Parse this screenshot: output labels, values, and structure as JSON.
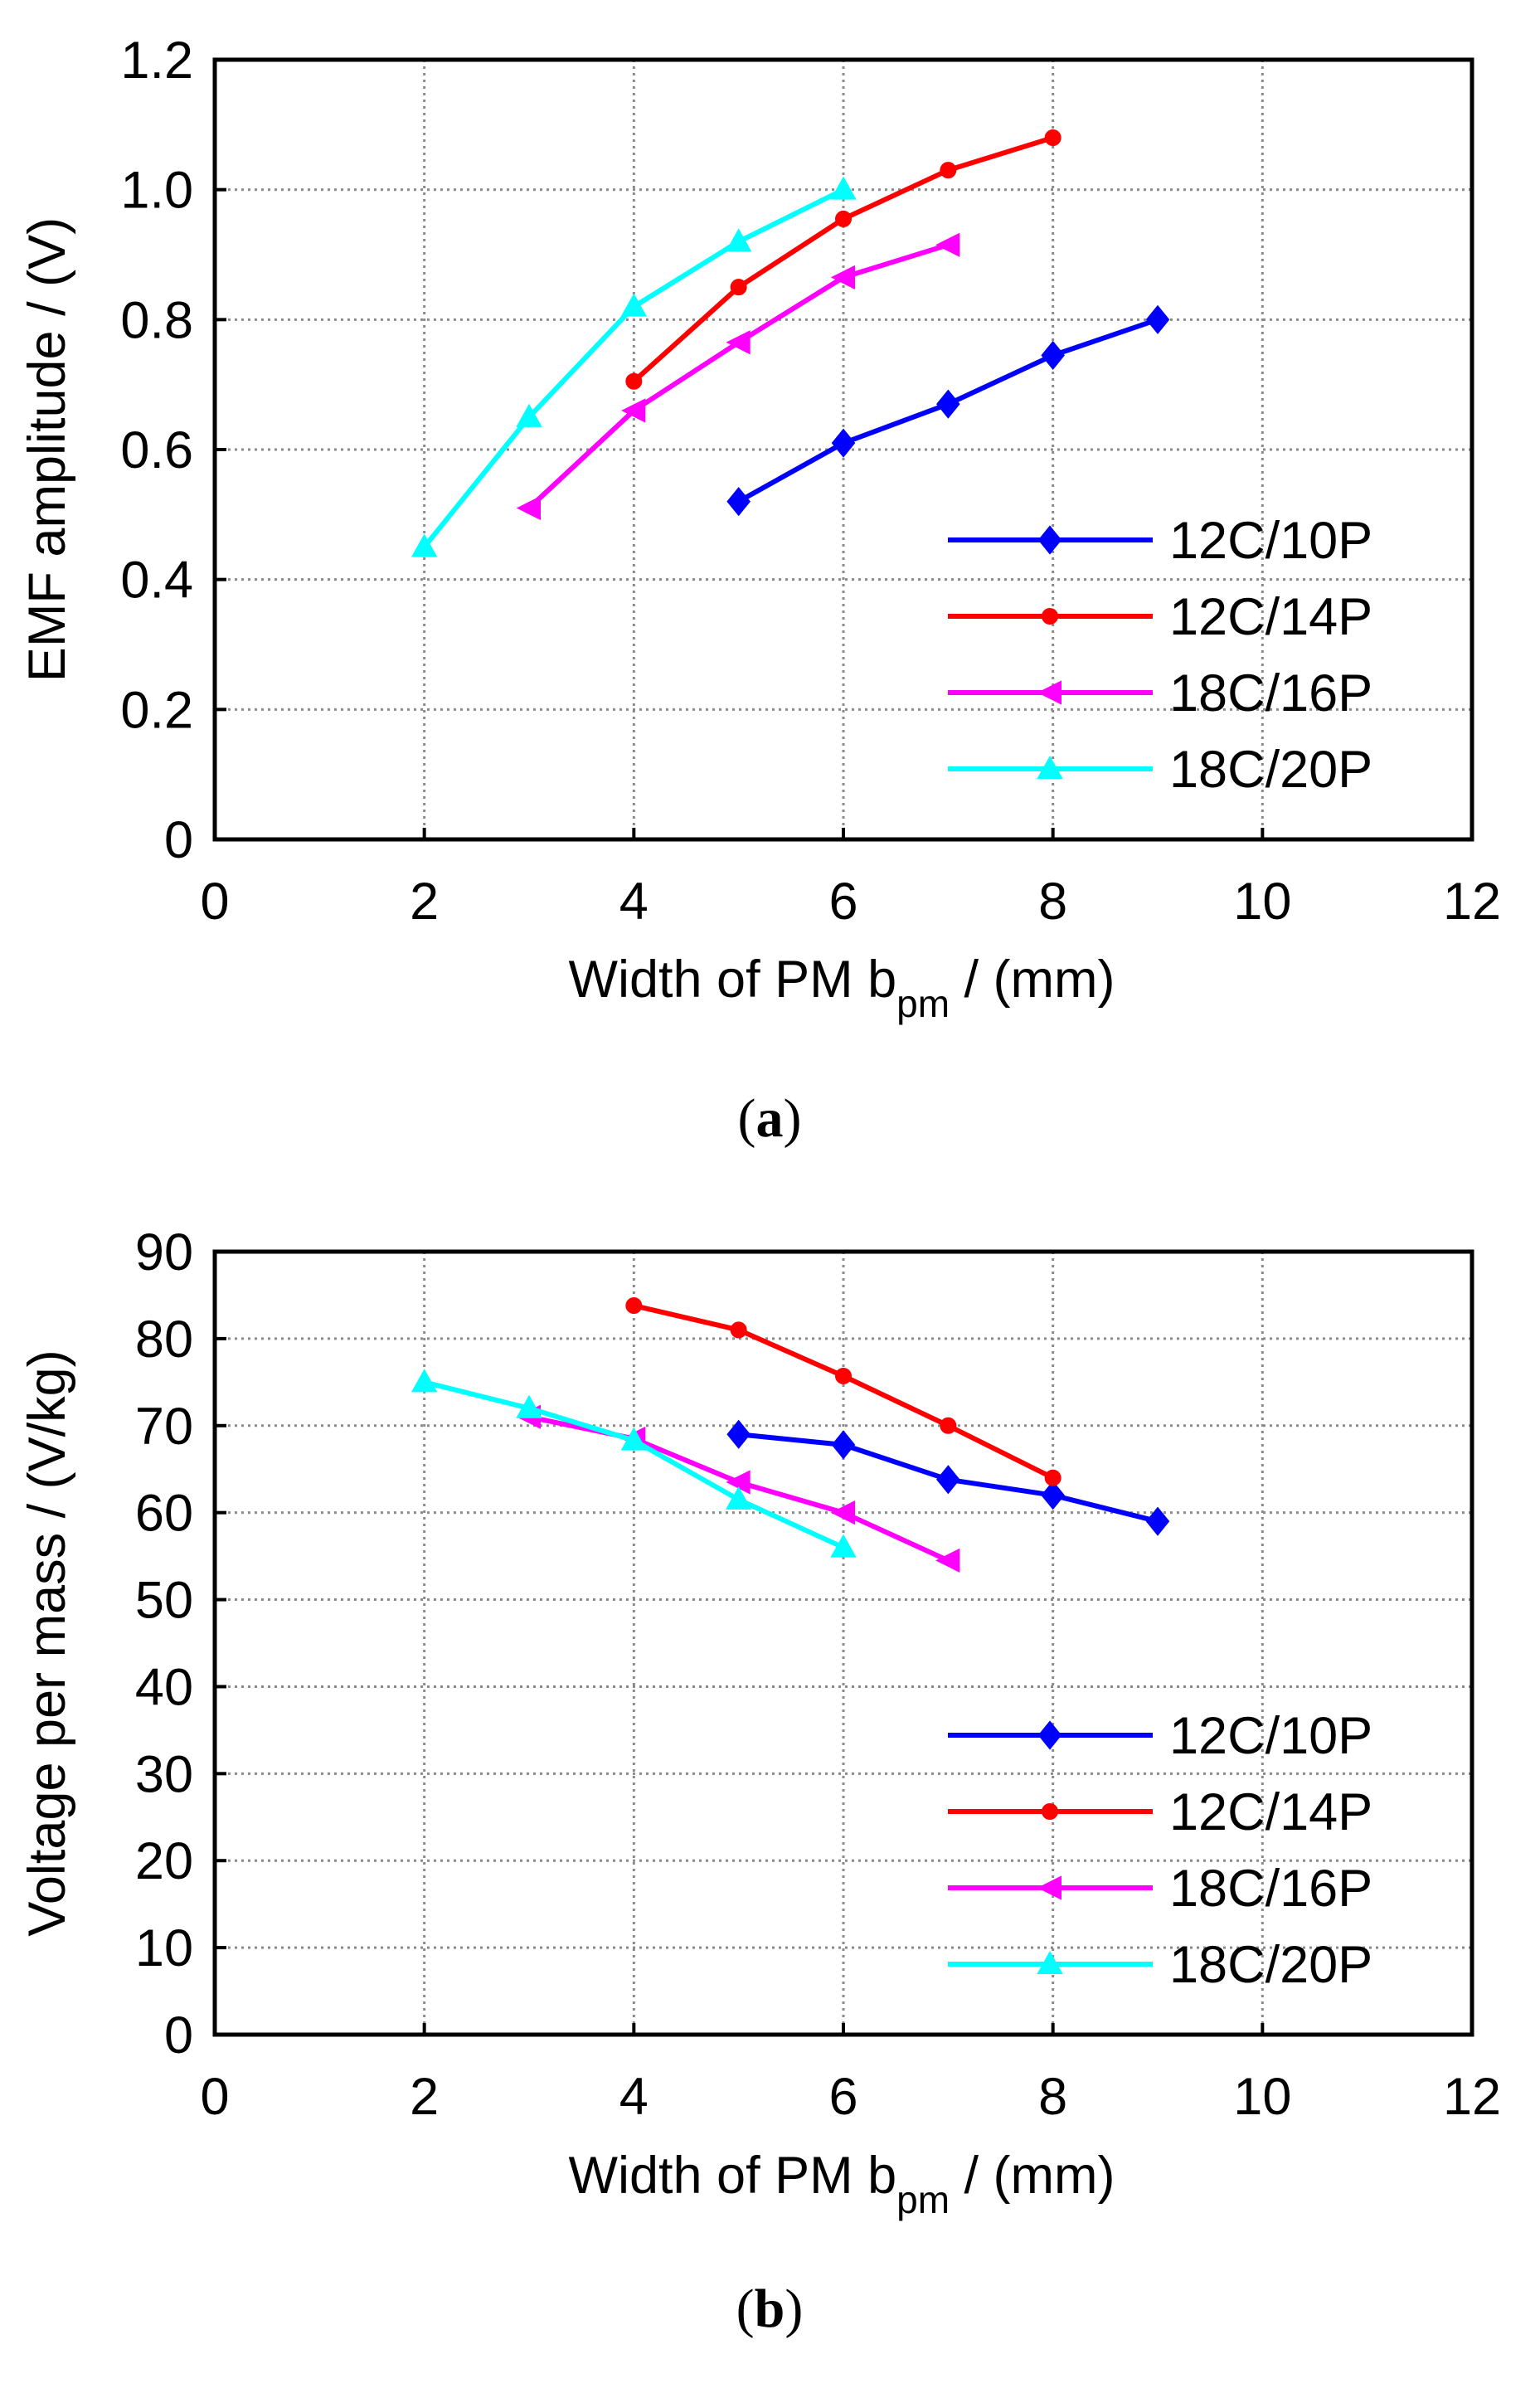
{
  "chart_data": [
    {
      "type": "line",
      "panel": "a",
      "caption_label": "a",
      "ylabel": "EMF amplitude / (V)",
      "xlabel_main": "Width of PM b",
      "xlabel_sub": "pm",
      "xlabel_tail": " / (mm)",
      "xlim": [
        0,
        12
      ],
      "ylim": [
        0,
        1.2
      ],
      "xticks": [
        "0",
        "2",
        "4",
        "6",
        "8",
        "10",
        "12"
      ],
      "yticks": [
        "0",
        "0.2",
        "0.4",
        "0.6",
        "0.8",
        "1.0",
        "1.2"
      ],
      "grid": true,
      "legend_position": "bottom-right",
      "series": [
        {
          "name": "12C/10P",
          "color": "#0000ff",
          "marker": "diamond",
          "x": [
            5,
            6,
            7,
            8,
            9
          ],
          "y": [
            0.52,
            0.61,
            0.67,
            0.745,
            0.8
          ]
        },
        {
          "name": "12C/14P",
          "color": "#ff0000",
          "marker": "circle",
          "x": [
            4,
            5,
            6,
            7,
            8
          ],
          "y": [
            0.705,
            0.85,
            0.955,
            1.03,
            1.08
          ]
        },
        {
          "name": "18C/16P",
          "color": "#ff00ff",
          "marker": "triangle-left",
          "x": [
            3,
            4,
            5,
            6,
            7
          ],
          "y": [
            0.51,
            0.66,
            0.765,
            0.865,
            0.915
          ]
        },
        {
          "name": "18C/20P",
          "color": "#00ffff",
          "marker": "triangle-up",
          "x": [
            2,
            3,
            4,
            5,
            6
          ],
          "y": [
            0.45,
            0.65,
            0.82,
            0.92,
            1.0
          ]
        }
      ]
    },
    {
      "type": "line",
      "panel": "b",
      "caption_label": "b",
      "ylabel": "Voltage per mass / (V/kg)",
      "xlabel_main": "Width of PM b",
      "xlabel_sub": "pm",
      "xlabel_tail": " / (mm)",
      "xlim": [
        0,
        12
      ],
      "ylim": [
        0,
        90
      ],
      "xticks": [
        "0",
        "2",
        "4",
        "6",
        "8",
        "10",
        "12"
      ],
      "yticks": [
        "0",
        "10",
        "20",
        "30",
        "40",
        "50",
        "60",
        "70",
        "80",
        "90"
      ],
      "grid": true,
      "legend_position": "bottom-right",
      "series": [
        {
          "name": "12C/10P",
          "color": "#0000ff",
          "marker": "diamond",
          "x": [
            5,
            6,
            7,
            8,
            9
          ],
          "y": [
            69,
            67.8,
            63.8,
            62,
            59
          ]
        },
        {
          "name": "12C/14P",
          "color": "#ff0000",
          "marker": "circle",
          "x": [
            4,
            5,
            6,
            7,
            8
          ],
          "y": [
            83.8,
            81,
            75.7,
            70,
            64
          ]
        },
        {
          "name": "18C/16P",
          "color": "#ff00ff",
          "marker": "triangle-left",
          "x": [
            3,
            4,
            5,
            6,
            7
          ],
          "y": [
            71,
            68.5,
            63.5,
            60,
            54.5
          ]
        },
        {
          "name": "18C/20P",
          "color": "#00ffff",
          "marker": "triangle-up",
          "x": [
            2,
            3,
            4,
            5,
            6
          ],
          "y": [
            75,
            72,
            68.3,
            61.5,
            56
          ]
        }
      ]
    }
  ]
}
